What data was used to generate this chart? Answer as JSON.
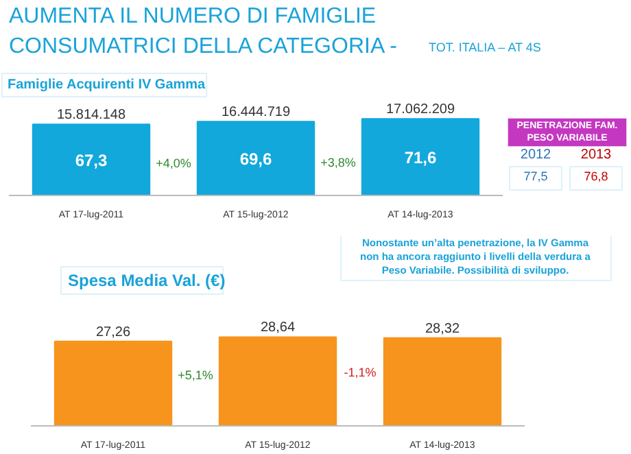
{
  "chart_data": [
    {
      "type": "bar",
      "title": "AUMENTA IL NUMERO DI FAMIGLIE\nCONSUMATRICI DELLA CATEGORIA -",
      "subtitle": "TOT. ITALIA – AT 4S",
      "ylabel": "Famiglie Acquirenti IV Gamma",
      "categories": [
        "AT 17-lug-2011",
        "AT 15-lug-2012",
        "AT 14-lug-2013"
      ],
      "values": [
        15814148,
        16444719,
        17062209
      ],
      "value_labels": [
        "15.814.148",
        "16.444.719",
        "17.062.209"
      ],
      "color": "#12a8dc",
      "annotations": [
        "67,3",
        "69,6",
        "71,6",
        "+4,0%",
        "+3,8%",
        "PENETRAZIONE FAM.\nPESO VARIABILE",
        "2012",
        "77,5",
        "2013",
        "76,8"
      ],
      "grid": false
    },
    {
      "type": "bar",
      "ylabel": "Spesa Media Val. (€)",
      "categories": [
        "AT 17-lug-2011",
        "AT 15-lug-2012",
        "AT 14-lug-2013"
      ],
      "values": [
        27.26,
        28.64,
        28.32
      ],
      "value_labels": [
        "27,26",
        "28,64",
        "28,32"
      ],
      "color": "#f7941d",
      "annotations": [
        "+5,1%",
        "-1,1%",
        "Nonostante un’alta penetrazione, la IV Gamma\nnon ha ancora raggiunto i livelli della verdura a\nPeso Variabile. Possibilità di sviluppo."
      ],
      "grid": false
    }
  ]
}
